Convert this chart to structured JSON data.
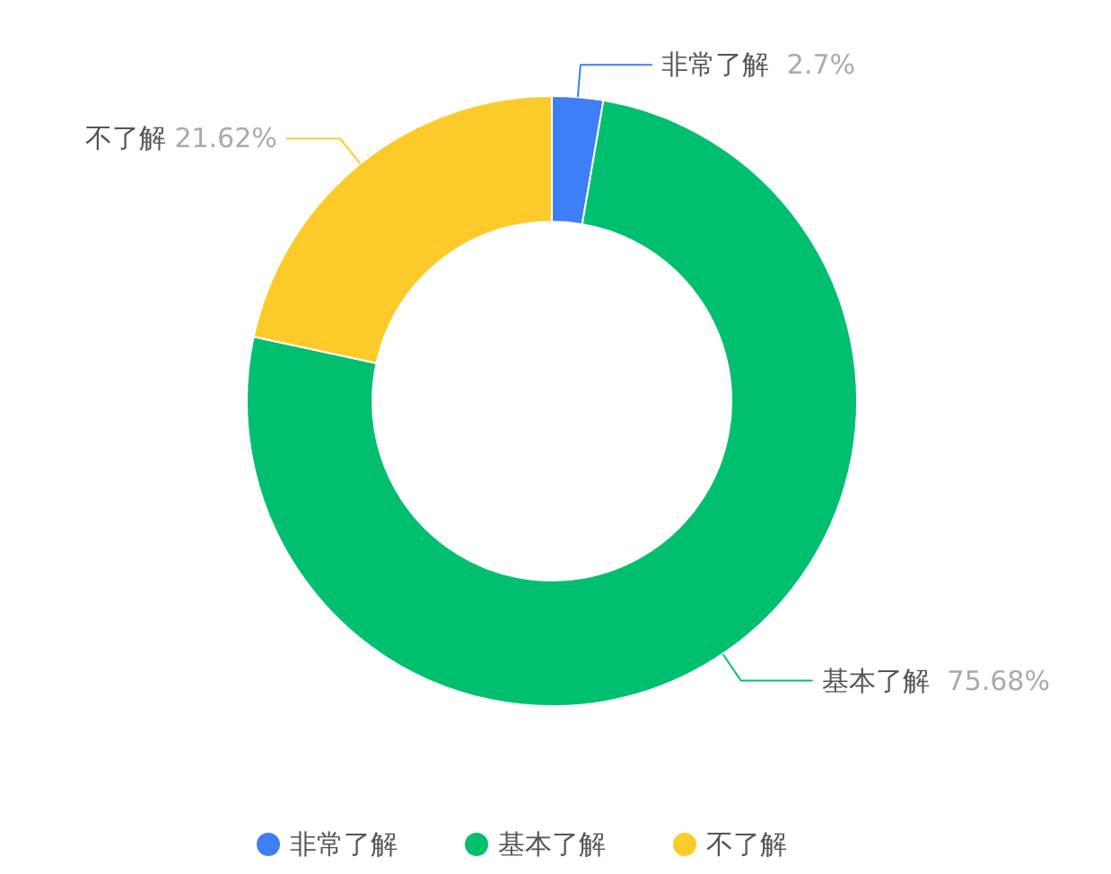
{
  "chart_data": {
    "type": "donut",
    "categories": [
      "非常了解",
      "基本了解",
      "不了解"
    ],
    "values": [
      2.7,
      75.68,
      21.62
    ],
    "value_labels": [
      "2.7%",
      "75.68%",
      "21.62%"
    ],
    "colors": [
      "#3e7ef7",
      "#00bf6f",
      "#fccb2a"
    ],
    "legend": "bottom"
  }
}
